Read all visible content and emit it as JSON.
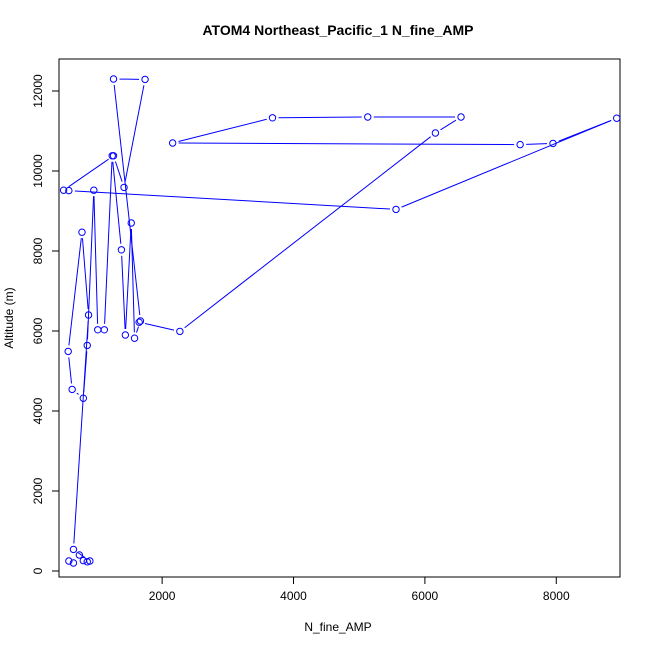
{
  "chart_data": {
    "type": "line",
    "title": "ATOM4 Northeast_Pacific_1 N_fine_AMP",
    "xlabel": "N_fine_AMP",
    "ylabel": "Altitude (m)",
    "xlim": [
      430,
      8970
    ],
    "ylim": [
      -150,
      12800
    ],
    "xticks": [
      2000,
      4000,
      6000,
      8000
    ],
    "yticks": [
      0,
      2000,
      4000,
      6000,
      8000,
      10000,
      12000
    ],
    "grid": false,
    "line_color": "#0000ff",
    "marker": "open-circle",
    "series": [
      {
        "name": "",
        "x": [
          580,
          650,
          740,
          800,
          860,
          900,
          650,
          880,
          780,
          570,
          630,
          800,
          860,
          960,
          1020,
          1120,
          1240,
          1380,
          1440,
          1530,
          1580,
          1670,
          1260,
          1740,
          1420,
          1260,
          500,
          580,
          5560,
          8920,
          7950,
          7450,
          2160,
          3680,
          5130,
          6550,
          6160,
          2270,
          1650
        ],
        "y": [
          250,
          200,
          400,
          260,
          230,
          250,
          540,
          6400,
          8470,
          5490,
          4540,
          4320,
          5640,
          9520,
          6030,
          6030,
          10380,
          8030,
          5900,
          8700,
          5820,
          6250,
          12300,
          12290,
          9590,
          10380,
          9520,
          9510,
          9040,
          11320,
          10690,
          10660,
          10700,
          11330,
          11350,
          11350,
          10950,
          5990,
          6220
        ]
      }
    ]
  }
}
